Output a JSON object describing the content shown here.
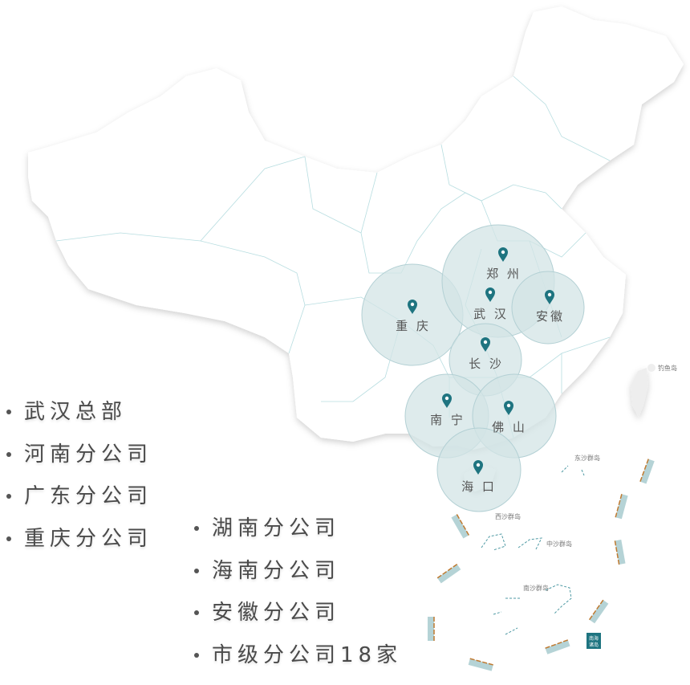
{
  "colors": {
    "pin": "#1e7480",
    "circle_fill": "#d3e4e6",
    "circle_stroke": "#b3d0d4",
    "land": "#ffffff",
    "border": "#b7dde0",
    "scale_bar": "#c07a30",
    "text": "#4a4a4a"
  },
  "cities": [
    {
      "name": "郑 州",
      "icon": "map-pin-icon"
    },
    {
      "name": "武 汉",
      "icon": "map-pin-icon"
    },
    {
      "name": "安徽",
      "icon": "map-pin-icon"
    },
    {
      "name": "重 庆",
      "icon": "map-pin-icon"
    },
    {
      "name": "长 沙",
      "icon": "map-pin-icon"
    },
    {
      "name": "南 宁",
      "icon": "map-pin-icon"
    },
    {
      "name": "佛 山",
      "icon": "map-pin-icon"
    },
    {
      "name": "海 口",
      "icon": "map-pin-icon"
    }
  ],
  "map_labels": {
    "diaoyu": "钓鱼岛",
    "dongsha": "东沙群岛",
    "xisha": "西沙群岛",
    "zhongsha": "中沙群岛",
    "nansha": "南沙群岛",
    "nanhai_line1": "南海",
    "nanhai_line2": "诸岛"
  },
  "branches_left": [
    "武汉总部",
    "河南分公司",
    "广东分公司",
    "重庆分公司"
  ],
  "branches_right": [
    "湖南分公司",
    "海南分公司",
    "安徽分公司",
    "市级分公司18家"
  ]
}
